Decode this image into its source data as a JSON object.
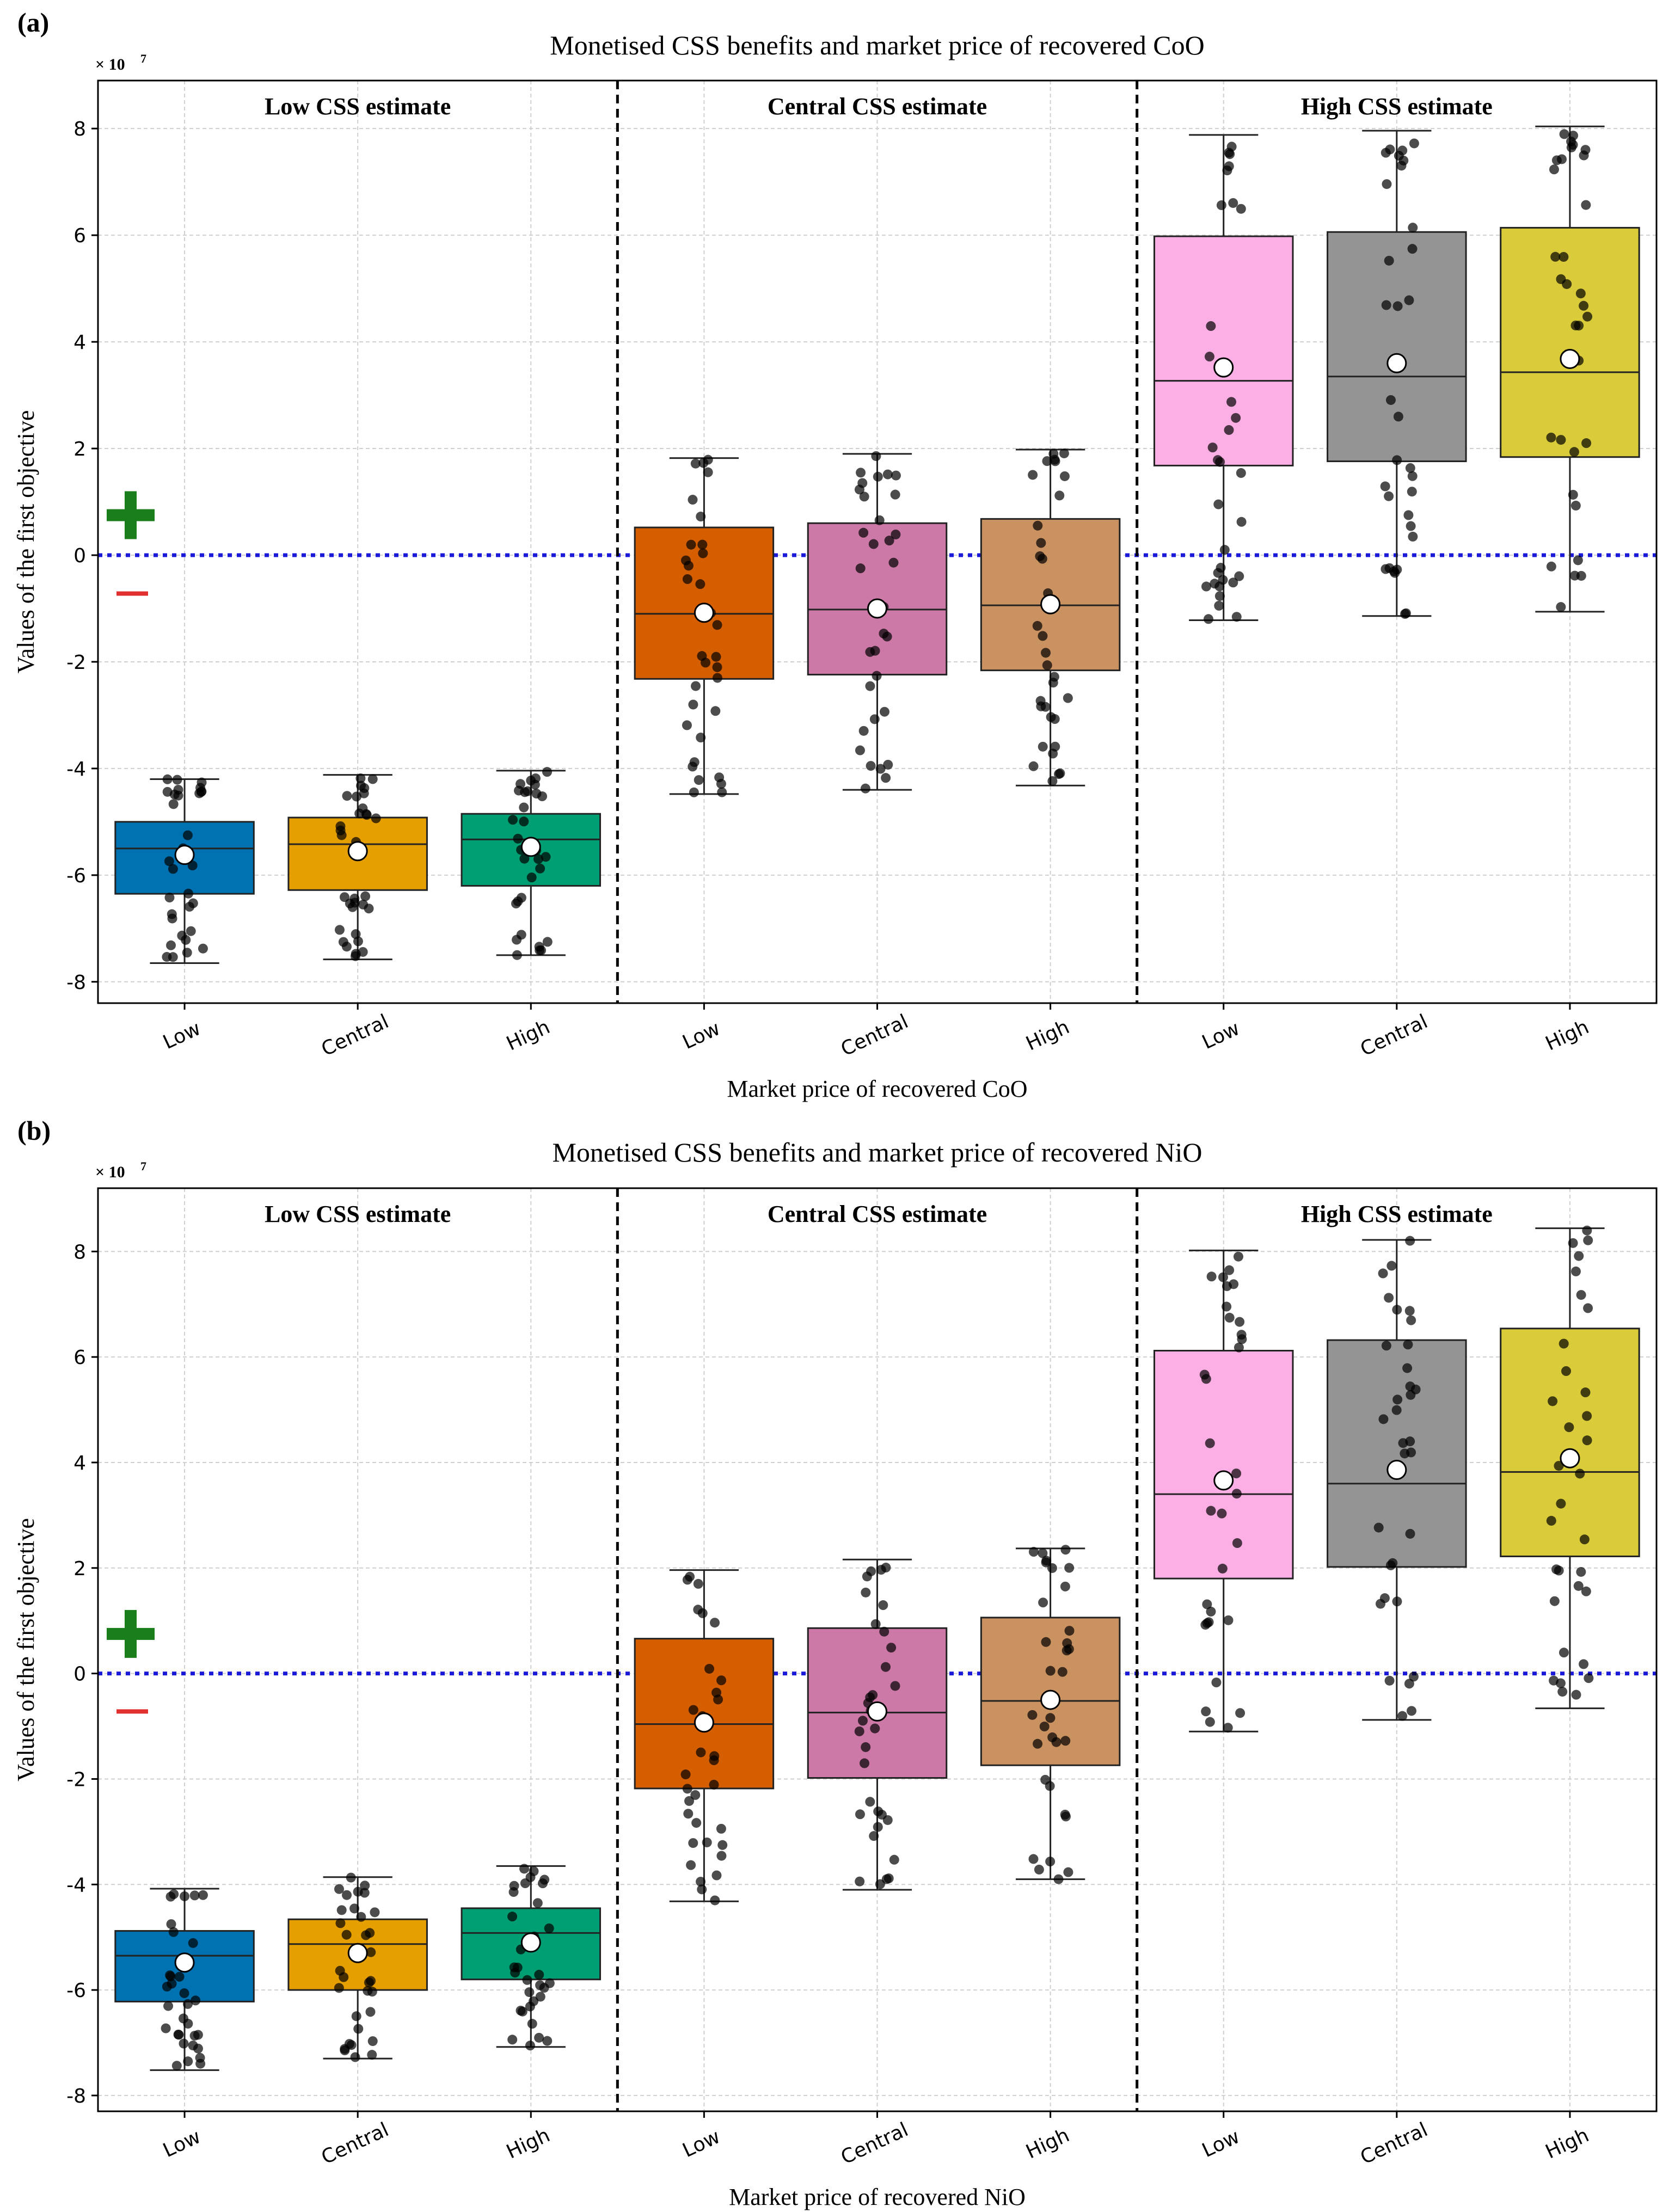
{
  "chart_data": [
    {
      "panel_label": "(a)",
      "type": "box",
      "title": "Monetised CSS benefits and market price of recovered CoO",
      "xlabel": "Market price of recovered CoO",
      "ylabel": "Values of the first objective",
      "y_multiplier_label": "× 10",
      "y_multiplier_exponent": "7",
      "ylim": [
        -8.4,
        8.9
      ],
      "yticks": [
        -8,
        -6,
        -4,
        -2,
        0,
        2,
        4,
        6,
        8
      ],
      "reference_line_y": 0,
      "plus_symbol": "+",
      "minus_symbol": "−",
      "groups": [
        {
          "label": "Low CSS estimate",
          "categories": [
            "Low",
            "Central",
            "High"
          ]
        },
        {
          "label": "Central CSS estimate",
          "categories": [
            "Low",
            "Central",
            "High"
          ]
        },
        {
          "label": "High CSS estimate",
          "categories": [
            "Low",
            "Central",
            "High"
          ]
        }
      ],
      "boxes": [
        {
          "group": "Low CSS estimate",
          "category": "Low",
          "color": "#0072B2",
          "whisker_low": -7.65,
          "q1": -6.35,
          "median": -5.5,
          "q3": -5.0,
          "whisker_high": -4.2,
          "mean": -5.62
        },
        {
          "group": "Low CSS estimate",
          "category": "Central",
          "color": "#E69F00",
          "whisker_low": -7.58,
          "q1": -6.28,
          "median": -5.42,
          "q3": -4.92,
          "whisker_high": -4.12,
          "mean": -5.55
        },
        {
          "group": "Low CSS estimate",
          "category": "High",
          "color": "#009E73",
          "whisker_low": -7.5,
          "q1": -6.2,
          "median": -5.33,
          "q3": -4.85,
          "whisker_high": -4.04,
          "mean": -5.47
        },
        {
          "group": "Central CSS estimate",
          "category": "Low",
          "color": "#D55E00",
          "whisker_low": -4.48,
          "q1": -2.32,
          "median": -1.1,
          "q3": 0.52,
          "whisker_high": 1.82,
          "mean": -1.08
        },
        {
          "group": "Central CSS estimate",
          "category": "Central",
          "color": "#CC79A7",
          "whisker_low": -4.4,
          "q1": -2.24,
          "median": -1.02,
          "q3": 0.6,
          "whisker_high": 1.9,
          "mean": -1.0
        },
        {
          "group": "Central CSS estimate",
          "category": "High",
          "color": "#CA9161",
          "whisker_low": -4.32,
          "q1": -2.16,
          "median": -0.94,
          "q3": 0.68,
          "whisker_high": 1.98,
          "mean": -0.92
        },
        {
          "group": "High CSS estimate",
          "category": "Low",
          "color": "#FBAFE4",
          "whisker_low": -1.22,
          "q1": 1.68,
          "median": 3.27,
          "q3": 5.98,
          "whisker_high": 7.88,
          "mean": 3.52
        },
        {
          "group": "High CSS estimate",
          "category": "Central",
          "color": "#949494",
          "whisker_low": -1.14,
          "q1": 1.76,
          "median": 3.35,
          "q3": 6.06,
          "whisker_high": 7.96,
          "mean": 3.6
        },
        {
          "group": "High CSS estimate",
          "category": "High",
          "color": "#D9CB3A",
          "whisker_low": -1.06,
          "q1": 1.84,
          "median": 3.43,
          "q3": 6.14,
          "whisker_high": 8.04,
          "mean": 3.68
        }
      ]
    },
    {
      "panel_label": "(b)",
      "type": "box",
      "title": "Monetised CSS benefits and market price of recovered NiO",
      "xlabel": "Market price of recovered NiO",
      "ylabel": "Values of the first objective",
      "y_multiplier_label": "× 10",
      "y_multiplier_exponent": "7",
      "ylim": [
        -8.3,
        9.2
      ],
      "yticks": [
        -8,
        -6,
        -4,
        -2,
        0,
        2,
        4,
        6,
        8
      ],
      "reference_line_y": 0,
      "plus_symbol": "+",
      "minus_symbol": "−",
      "groups": [
        {
          "label": "Low CSS estimate",
          "categories": [
            "Low",
            "Central",
            "High"
          ]
        },
        {
          "label": "Central CSS estimate",
          "categories": [
            "Low",
            "Central",
            "High"
          ]
        },
        {
          "label": "High CSS estimate",
          "categories": [
            "Low",
            "Central",
            "High"
          ]
        }
      ],
      "boxes": [
        {
          "group": "Low CSS estimate",
          "category": "Low",
          "color": "#0072B2",
          "whisker_low": -7.52,
          "q1": -6.22,
          "median": -5.35,
          "q3": -4.88,
          "whisker_high": -4.08,
          "mean": -5.48
        },
        {
          "group": "Low CSS estimate",
          "category": "Central",
          "color": "#E69F00",
          "whisker_low": -7.3,
          "q1": -6.0,
          "median": -5.13,
          "q3": -4.66,
          "whisker_high": -3.86,
          "mean": -5.3
        },
        {
          "group": "Low CSS estimate",
          "category": "High",
          "color": "#009E73",
          "whisker_low": -7.08,
          "q1": -5.8,
          "median": -4.92,
          "q3": -4.45,
          "whisker_high": -3.65,
          "mean": -5.1
        },
        {
          "group": "Central CSS estimate",
          "category": "Low",
          "color": "#D55E00",
          "whisker_low": -4.32,
          "q1": -2.18,
          "median": -0.96,
          "q3": 0.66,
          "whisker_high": 1.96,
          "mean": -0.93
        },
        {
          "group": "Central CSS estimate",
          "category": "Central",
          "color": "#CC79A7",
          "whisker_low": -4.1,
          "q1": -1.98,
          "median": -0.74,
          "q3": 0.86,
          "whisker_high": 2.16,
          "mean": -0.72
        },
        {
          "group": "Central CSS estimate",
          "category": "High",
          "color": "#CA9161",
          "whisker_low": -3.9,
          "q1": -1.74,
          "median": -0.52,
          "q3": 1.06,
          "whisker_high": 2.37,
          "mean": -0.5
        },
        {
          "group": "High CSS estimate",
          "category": "Low",
          "color": "#FBAFE4",
          "whisker_low": -1.1,
          "q1": 1.8,
          "median": 3.4,
          "q3": 6.12,
          "whisker_high": 8.02,
          "mean": 3.66
        },
        {
          "group": "High CSS estimate",
          "category": "Central",
          "color": "#949494",
          "whisker_low": -0.88,
          "q1": 2.02,
          "median": 3.6,
          "q3": 6.32,
          "whisker_high": 8.22,
          "mean": 3.86
        },
        {
          "group": "High CSS estimate",
          "category": "High",
          "color": "#D9CB3A",
          "whisker_low": -0.66,
          "q1": 2.22,
          "median": 3.82,
          "q3": 6.54,
          "whisker_high": 8.44,
          "mean": 4.08
        }
      ]
    }
  ],
  "style": {
    "plus_color": "#1a7f1a",
    "minus_color": "#e03030",
    "reference_line_color": "#1a1ad8",
    "grid_color": "#cfcfcf",
    "point_color": "#000000",
    "mean_marker_fill": "#ffffff"
  }
}
